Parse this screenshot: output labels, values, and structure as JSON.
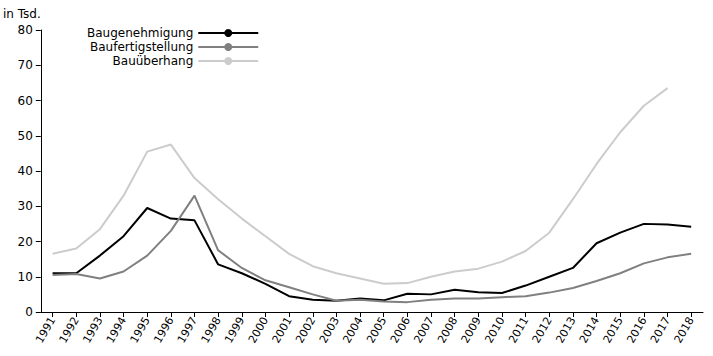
{
  "chart_data": {
    "type": "line",
    "y_label": "in Tsd.",
    "categories": [
      "1991",
      "1992",
      "1993",
      "1994",
      "1995",
      "1996",
      "1997",
      "1998",
      "1999",
      "2000",
      "2001",
      "2002",
      "2003",
      "2004",
      "2005",
      "2006",
      "2007",
      "2008",
      "2009",
      "2010",
      "2011",
      "2012",
      "2013",
      "2014",
      "2015",
      "2016",
      "2017",
      "2018"
    ],
    "series": [
      {
        "name": "Baugenehmigung",
        "color": "#000000",
        "values": [
          11,
          11,
          16,
          21.5,
          29.5,
          26.5,
          26,
          13.5,
          11,
          8,
          4.5,
          3.5,
          3.2,
          3.8,
          3.3,
          5.2,
          5,
          6.3,
          5.6,
          5.4,
          7.5,
          10,
          12.5,
          19.5,
          22.5,
          25,
          24.8,
          24.2
        ]
      },
      {
        "name": "Baufertigstellung",
        "color": "#808080",
        "values": [
          10.5,
          10.8,
          9.5,
          11.5,
          16,
          23,
          33,
          17.5,
          12.5,
          9,
          7,
          5,
          3.2,
          3.5,
          3,
          2.8,
          3.5,
          3.8,
          3.8,
          4.2,
          4.5,
          5.5,
          6.8,
          8.8,
          11,
          13.8,
          15.5,
          16.5
        ]
      },
      {
        "name": "Bauüberhang",
        "color": "#cccccc",
        "values": [
          16.5,
          18,
          23.5,
          33,
          45.5,
          47.5,
          38,
          32,
          26.5,
          21.5,
          16.5,
          13,
          11,
          9.5,
          8,
          8.2,
          10,
          11.5,
          12.3,
          14.3,
          17.3,
          22.5,
          32,
          42,
          51,
          58.5,
          63.5,
          null
        ]
      }
    ],
    "ylim": [
      0,
      80
    ],
    "yticks": [
      0,
      10,
      20,
      30,
      40,
      50,
      60,
      70,
      80
    ],
    "grid": false,
    "legend": "top-left"
  }
}
